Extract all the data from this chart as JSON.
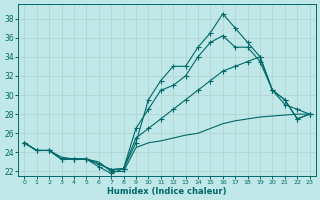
{
  "xlabel": "Humidex (Indice chaleur)",
  "background_color": "#c0e8e8",
  "grid_color": "#b0d0d0",
  "line_color": "#006868",
  "xlim": [
    -0.5,
    23.5
  ],
  "ylim": [
    21.5,
    39.5
  ],
  "xticks": [
    0,
    1,
    2,
    3,
    4,
    5,
    6,
    7,
    8,
    9,
    10,
    11,
    12,
    13,
    14,
    15,
    16,
    17,
    18,
    19,
    20,
    21,
    22,
    23
  ],
  "yticks": [
    22,
    24,
    26,
    28,
    30,
    32,
    34,
    36,
    38
  ],
  "series1_y": [
    25.0,
    24.2,
    24.2,
    23.3,
    23.3,
    23.3,
    22.5,
    21.8,
    22.3,
    25.0,
    29.5,
    31.5,
    33.0,
    33.0,
    35.0,
    36.5,
    38.5,
    37.0,
    35.5,
    34.0,
    30.5,
    29.0,
    28.5,
    28.0
  ],
  "series2_y": [
    25.0,
    24.2,
    24.2,
    23.3,
    23.3,
    23.3,
    22.8,
    22.2,
    22.3,
    26.5,
    28.5,
    30.5,
    31.0,
    32.0,
    34.0,
    35.5,
    36.2,
    35.0,
    35.0,
    33.5,
    30.5,
    29.5,
    27.5,
    28.0
  ],
  "series3_y": [
    25.0,
    24.2,
    24.2,
    23.3,
    23.3,
    23.3,
    22.8,
    22.2,
    22.3,
    25.5,
    26.5,
    27.5,
    28.5,
    29.5,
    30.5,
    31.5,
    32.5,
    33.0,
    33.5,
    34.0,
    30.5,
    29.5,
    27.5,
    28.0
  ],
  "series4_y": [
    25.0,
    24.2,
    24.2,
    23.5,
    23.3,
    23.3,
    23.0,
    22.0,
    22.0,
    24.5,
    25.0,
    25.2,
    25.5,
    25.8,
    26.0,
    26.5,
    27.0,
    27.3,
    27.5,
    27.7,
    27.8,
    27.9,
    28.0,
    28.0
  ]
}
